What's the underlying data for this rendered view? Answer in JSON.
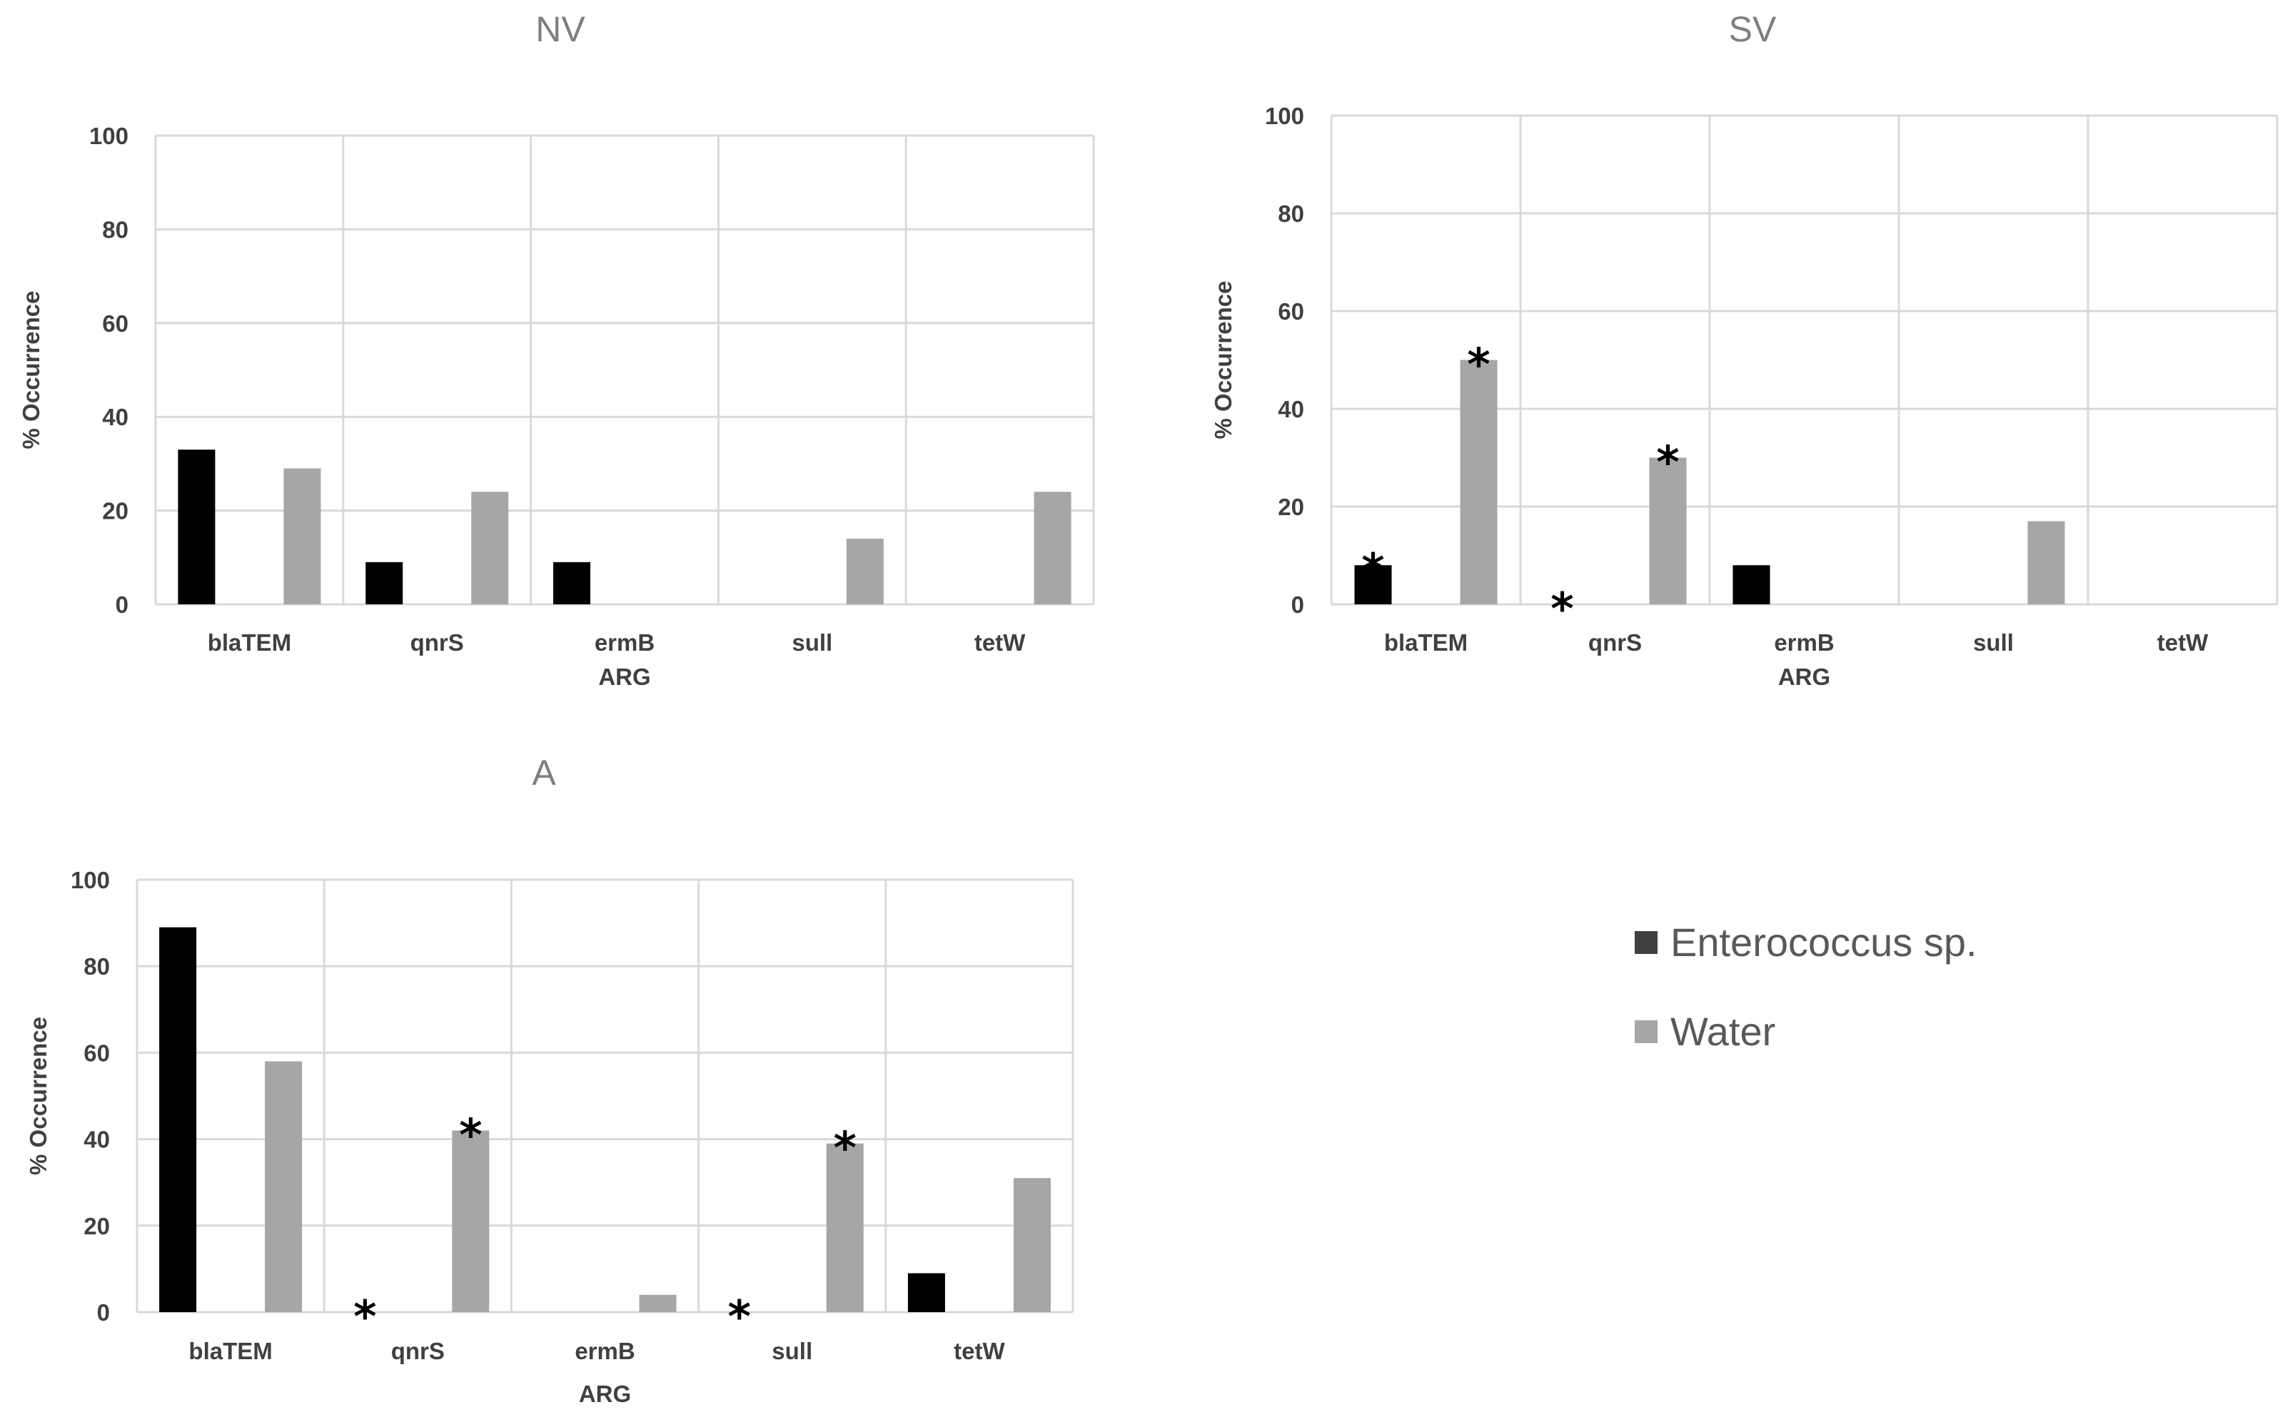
{
  "colors": {
    "enterococcus": "#000000",
    "water": "#a6a6a6"
  },
  "legend": {
    "items": [
      {
        "label": "Enterococcus sp.",
        "color": "#404040"
      },
      {
        "label": "Water",
        "color": "#a6a6a6"
      }
    ]
  },
  "chart_data": [
    {
      "type": "bar",
      "title": "NV",
      "xlabel": "ARG",
      "ylabel": "% Occurrence",
      "ylim": [
        0,
        100
      ],
      "yticks": [
        "0",
        "20",
        "40",
        "60",
        "80",
        "100"
      ],
      "categories": [
        "blaTEM",
        "qnrS",
        "ermB",
        "sull",
        "tetW"
      ],
      "series": [
        {
          "name": "Enterococcus sp.",
          "values": [
            33,
            9,
            9,
            0,
            0
          ]
        },
        {
          "name": "Water",
          "values": [
            29,
            24,
            0,
            14,
            24
          ]
        }
      ],
      "annotations": []
    },
    {
      "type": "bar",
      "title": "SV",
      "xlabel": "ARG",
      "ylabel": "% Occurrence",
      "ylim": [
        0,
        100
      ],
      "yticks": [
        "0",
        "20",
        "40",
        "60",
        "80",
        "100"
      ],
      "categories": [
        "blaTEM",
        "qnrS",
        "ermB",
        "sull",
        "tetW"
      ],
      "series": [
        {
          "name": "Enterococcus sp.",
          "values": [
            8,
            0,
            8,
            0,
            0
          ]
        },
        {
          "name": "Water",
          "values": [
            50,
            30,
            0,
            17,
            0
          ]
        }
      ],
      "annotations": [
        {
          "category": 0,
          "series": 0,
          "text": "*"
        },
        {
          "category": 0,
          "series": 1,
          "text": "*"
        },
        {
          "category": 1,
          "series": 0,
          "text": "*"
        },
        {
          "category": 1,
          "series": 1,
          "text": "*"
        }
      ]
    },
    {
      "type": "bar",
      "title": "A",
      "xlabel": "ARG",
      "ylabel": "% Occurrence",
      "ylim": [
        0,
        100
      ],
      "yticks": [
        "0",
        "20",
        "40",
        "60",
        "80",
        "100"
      ],
      "categories": [
        "blaTEM",
        "qnrS",
        "ermB",
        "sull",
        "tetW"
      ],
      "series": [
        {
          "name": "Enterococcus sp.",
          "values": [
            89,
            0,
            0,
            0,
            9
          ]
        },
        {
          "name": "Water",
          "values": [
            58,
            42,
            4,
            39,
            31
          ]
        }
      ],
      "annotations": [
        {
          "category": 1,
          "series": 0,
          "text": "*"
        },
        {
          "category": 1,
          "series": 1,
          "text": "*"
        },
        {
          "category": 3,
          "series": 0,
          "text": "*"
        },
        {
          "category": 3,
          "series": 1,
          "text": "*"
        }
      ]
    }
  ]
}
